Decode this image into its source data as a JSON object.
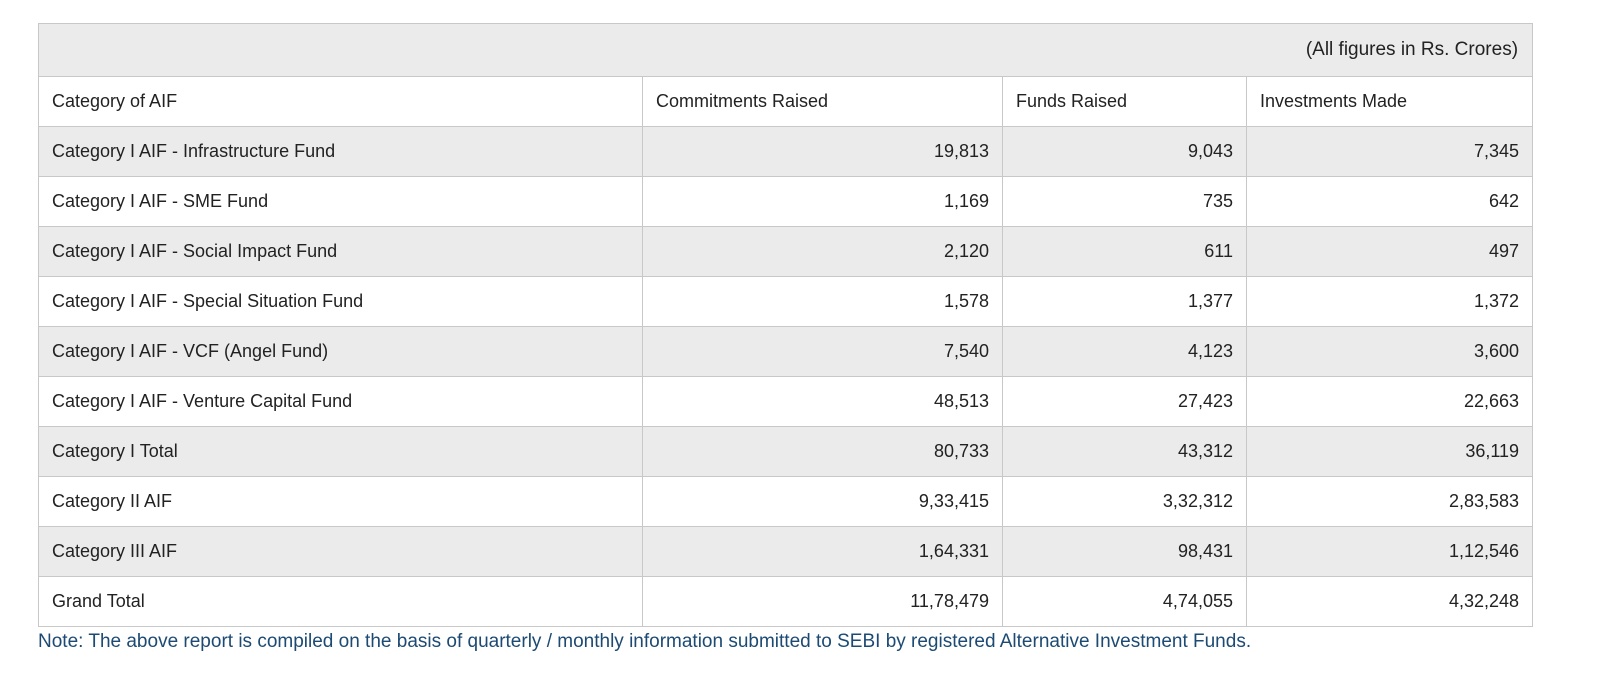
{
  "table": {
    "units_note": "(All figures in Rs. Crores)",
    "columns": [
      "Category of AIF",
      "Commitments Raised",
      "Funds Raised",
      "Investments Made"
    ],
    "rows": [
      {
        "category": "Category I AIF - Infrastructure Fund",
        "commitments": "19,813",
        "funds": "9,043",
        "investments": "7,345"
      },
      {
        "category": "Category I AIF - SME Fund",
        "commitments": "1,169",
        "funds": "735",
        "investments": "642"
      },
      {
        "category": "Category I AIF - Social Impact Fund",
        "commitments": "2,120",
        "funds": "611",
        "investments": "497"
      },
      {
        "category": "Category I AIF - Special Situation Fund",
        "commitments": "1,578",
        "funds": "1,377",
        "investments": "1,372"
      },
      {
        "category": "Category I AIF - VCF (Angel Fund)",
        "commitments": "7,540",
        "funds": "4,123",
        "investments": "3,600"
      },
      {
        "category": "Category I AIF - Venture Capital Fund",
        "commitments": "48,513",
        "funds": "27,423",
        "investments": "22,663"
      },
      {
        "category": "Category I Total",
        "commitments": "80,733",
        "funds": "43,312",
        "investments": "36,119"
      },
      {
        "category": "Category II AIF",
        "commitments": "9,33,415",
        "funds": "3,32,312",
        "investments": "2,83,583"
      },
      {
        "category": "Category III AIF",
        "commitments": "1,64,331",
        "funds": "98,431",
        "investments": "1,12,546"
      },
      {
        "category": "Grand Total",
        "commitments": "11,78,479",
        "funds": "4,74,055",
        "investments": "4,32,248"
      }
    ]
  },
  "note": "Note:  The above report is compiled on the basis of quarterly / monthly information submitted to SEBI by registered Alternative Investment Funds.",
  "colors": {
    "stripe": "#ebebeb",
    "border": "#c8c8c8",
    "note_text": "#1c4a73"
  }
}
